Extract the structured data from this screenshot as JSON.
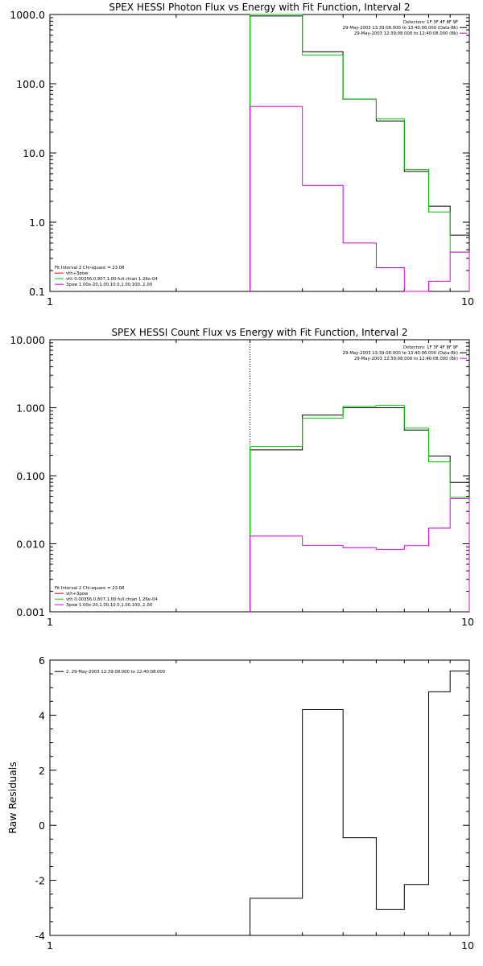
{
  "colors": {
    "black": "#000000",
    "magenta": "#e000e0",
    "green": "#00c800",
    "red": "#d00000"
  },
  "chart_data": [
    {
      "type": "line",
      "title": "SPEX HESSI Photon Flux vs Energy with Fit Function, Interval 2",
      "xscale": "log",
      "yscale": "log",
      "xlim": [
        1,
        10
      ],
      "ylim": [
        0.1,
        1000
      ],
      "xticks": [
        "1",
        "10"
      ],
      "yticks": [
        "0.1",
        "1.0",
        "10.0",
        "100.0",
        "1000.0"
      ],
      "grid": false,
      "edges": [
        3,
        4,
        5,
        6,
        7,
        8,
        9,
        10
      ],
      "vline_x": 3,
      "series": [
        {
          "name": "Detectors: 1F 3F 4F 8F 9F",
          "values": [
            950,
            290,
            60,
            29,
            5.4,
            1.7,
            0.65
          ],
          "color": "black"
        },
        {
          "name": "vth+3pow",
          "values": [
            1000,
            260,
            60,
            31,
            5.8,
            1.4,
            0.37
          ],
          "color": "green"
        },
        {
          "name": "",
          "values": [
            47,
            3.4,
            0.5,
            0.22,
            0.1,
            0.14,
            0.37
          ],
          "color": "magenta"
        }
      ],
      "legend_top_right": [
        "Detectors: 1F 3F 4F 8F 9F",
        "29-May-2003 13:39:08.000 to 13:40:06.000 (Data-Bk)",
        "29-May-2003 12:39:08.000 to 12:40:08.000 (Bk)"
      ],
      "legend_bottom_left": [
        "Fit Interval  2    Chi-square = 23.08",
        "vth+3pow",
        "vth 0.00356,0.807,1.00   full chian 1.26e-04",
        "3pow  1.00e-20,1.00,10.0,1.00,100.,1.00"
      ]
    },
    {
      "type": "line",
      "title": "SPEX HESSI Count Flux vs Energy with Fit Function, Interval 2",
      "xscale": "log",
      "yscale": "log",
      "xlim": [
        1,
        10
      ],
      "ylim": [
        0.001,
        10
      ],
      "xticks": [
        "1",
        "10"
      ],
      "yticks": [
        "0.001",
        "0.010",
        "0.100",
        "1.000",
        "10.000"
      ],
      "grid": false,
      "edges": [
        3,
        4,
        5,
        6,
        7,
        8,
        9,
        10
      ],
      "vline_x": 3,
      "series": [
        {
          "name": "29-May-2003 13:39:08.000 to 13:40:06.000 (Data-Bk)",
          "values": [
            0.24,
            0.78,
            1.0,
            1.0,
            0.47,
            0.195,
            0.08
          ],
          "color": "black"
        },
        {
          "name": "vth+3pow",
          "values": [
            0.27,
            0.7,
            1.05,
            1.08,
            0.5,
            0.16,
            0.048
          ],
          "color": "green"
        },
        {
          "name": "29-May-2003 12:39:08.000 to 12:40:08.000 (Bk)",
          "values": [
            0.013,
            0.0095,
            0.0088,
            0.0083,
            0.0094,
            0.017,
            0.046
          ],
          "color": "magenta"
        }
      ],
      "legend_top_right": [
        "Detectors: 1F 3F 4F 8F 9F",
        "29-May-2003 13:39:08.000 to 13:40:06.000 (Data-Bk)",
        "29-May-2003 12:39:08.000 to 12:40:08.000 (Bk)"
      ],
      "legend_bottom_left": [
        "Fit Interval  2    Chi-square = 23.08",
        "vth+3pow",
        "vth 0.00356,0.807,1.00   full chian 1.26e-04",
        "3pow  1.00e-20,1.00,10.0,1.00,100.,1.00"
      ]
    },
    {
      "type": "line",
      "title": "",
      "xscale": "log",
      "yscale": "linear",
      "xlim": [
        1,
        10
      ],
      "ylim": [
        -4,
        6
      ],
      "xticks": [
        "1",
        "10"
      ],
      "yticks": [
        "-4",
        "-2",
        "0",
        "2",
        "4",
        "6"
      ],
      "ylabel": "Raw Residuals",
      "grid": false,
      "edges": [
        3,
        4,
        5,
        6,
        7,
        8,
        9,
        10
      ],
      "series": [
        {
          "name": "2. 29-May-2003 12:39:08.000 to 12:40:08.000",
          "values": [
            -2.65,
            4.2,
            -0.45,
            -3.05,
            -2.15,
            4.85,
            5.6
          ],
          "color": "black"
        }
      ],
      "legend_top_left": [
        "2. 29-May-2003 12:39:08.000 to 12:40:08.000"
      ]
    }
  ]
}
